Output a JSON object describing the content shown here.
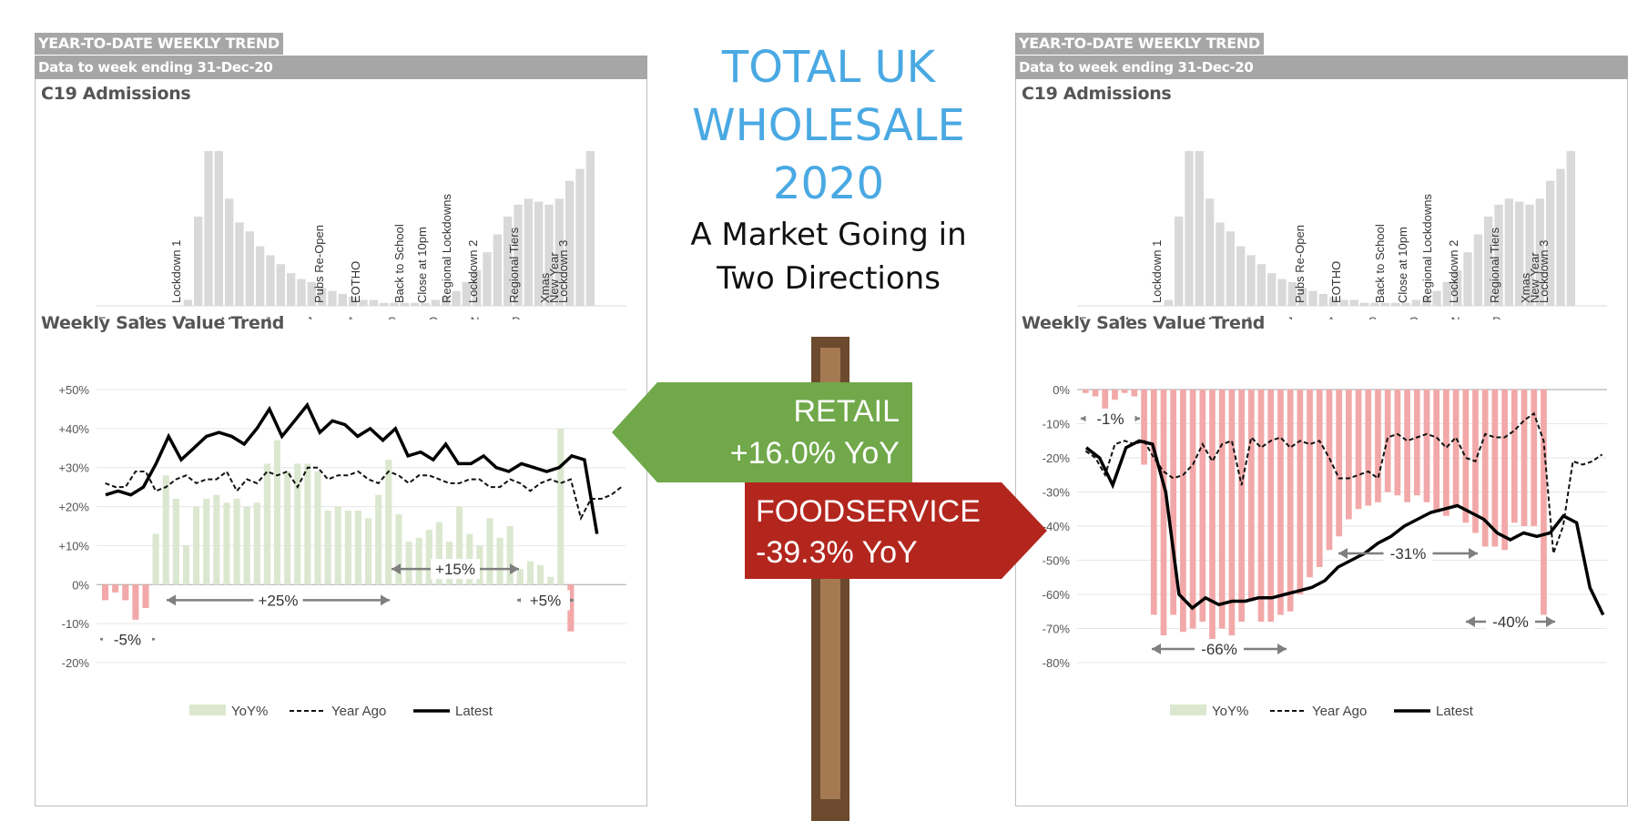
{
  "header": {
    "tab_label": "YEAR-TO-DATE WEEKLY TREND",
    "subtitle": "Data to week ending 31-Dec-20"
  },
  "center": {
    "title_lines": [
      "TOTAL UK",
      "WHOLESALE",
      "2020"
    ],
    "subtitle_lines": [
      "A Market Going in",
      "Two Directions"
    ]
  },
  "signs": {
    "retail": {
      "label": "RETAIL",
      "value": "+16.0% YoY",
      "color": "#70a84a"
    },
    "foodservice": {
      "label": "FOODSERVICE",
      "value": "-39.3% YoY",
      "color": "#b3261e"
    }
  },
  "colors": {
    "yoy_positive": "#dbe8cf",
    "yoy_negative": "#f2a8a8",
    "admissions": "#d9d9d9",
    "accent_blue": "#4aa9e3"
  },
  "shared": {
    "admissions_title": "C19 Admissions",
    "sales_title": "Weekly Sales Value Trend",
    "month_labels": [
      "F",
      "M",
      "A",
      "M",
      "J",
      "J",
      "A",
      "S",
      "O",
      "N",
      "D"
    ],
    "admissions": [
      0,
      0,
      0,
      0,
      0,
      0,
      0,
      0,
      2,
      30,
      52,
      52,
      36,
      28,
      25,
      20,
      17,
      14,
      11,
      9,
      8,
      6,
      5,
      4,
      3,
      2,
      2,
      1,
      1,
      1,
      1,
      1,
      2,
      3,
      5,
      8,
      12,
      18,
      24,
      30,
      34,
      36,
      35,
      34,
      36,
      42,
      46,
      52,
      0,
      0,
      0
    ],
    "events": [
      "Lockdown 1",
      "Pubs Re-Open",
      "EOTHO",
      "Back to School",
      "Close at 10pm",
      "Regional Lockdowns",
      "Lockdown 2",
      "Regional Tiers",
      "Xmas",
      "New Year",
      "Lockdown 3"
    ],
    "legend": [
      "YoY%",
      "Year Ago",
      "Latest"
    ]
  },
  "chart_data": [
    {
      "type": "line",
      "panel": "left",
      "title": "Weekly Sales Value Trend",
      "ylim": [
        -20,
        50
      ],
      "yticks": [
        "+50%",
        "+40%",
        "+30%",
        "+20%",
        "+10%",
        "0%",
        "-10%",
        "-20%"
      ],
      "series": [
        {
          "name": "YoY%",
          "kind": "bar",
          "values": [
            -4,
            -2,
            -4,
            -9,
            -6,
            13,
            28,
            22,
            10,
            20,
            22,
            23,
            21,
            22,
            20,
            21,
            31,
            37,
            29,
            31,
            31,
            29,
            19,
            20,
            19,
            19,
            17,
            23,
            32,
            18,
            11,
            12,
            14,
            16,
            11,
            20,
            13,
            10,
            17,
            12,
            15,
            4,
            6,
            5,
            2,
            40,
            -12
          ]
        },
        {
          "name": "Year Ago",
          "kind": "line",
          "values": [
            26,
            25,
            25,
            29,
            29,
            24,
            25,
            27,
            28,
            26,
            27,
            27,
            29,
            24,
            27,
            26,
            29,
            28,
            29,
            25,
            30,
            30,
            27,
            28,
            28,
            29,
            27,
            26,
            29,
            28,
            26,
            28,
            28,
            27,
            26,
            26,
            27,
            27,
            25,
            25,
            27,
            26,
            24,
            26,
            27,
            26,
            27,
            17,
            22,
            22,
            23,
            25
          ]
        },
        {
          "name": "Latest",
          "kind": "line",
          "values": [
            23,
            24,
            23,
            25,
            31,
            38,
            32,
            35,
            38,
            39,
            38,
            36,
            40,
            45,
            38,
            42,
            46,
            39,
            42,
            41,
            38,
            40,
            37,
            40,
            33,
            34,
            32,
            36,
            31,
            31,
            33,
            30,
            29,
            31,
            30,
            29,
            30,
            33,
            32,
            13
          ]
        }
      ],
      "annotations": [
        "-5%",
        "+25%",
        "+15%",
        "+5%"
      ]
    },
    {
      "type": "line",
      "panel": "right",
      "title": "Weekly Sales Value Trend",
      "ylim": [
        -80,
        0
      ],
      "yticks": [
        "0%",
        "-10%",
        "-20%",
        "-30%",
        "-40%",
        "-50%",
        "-60%",
        "-70%",
        "-80%"
      ],
      "series": [
        {
          "name": "YoY%",
          "kind": "bar",
          "values": [
            -1,
            -2,
            -6,
            -3,
            -1,
            -2,
            -22,
            -66,
            -72,
            -66,
            -71,
            -70,
            -68,
            -74,
            -70,
            -72,
            -68,
            -62,
            -68,
            -68,
            -66,
            -65,
            -60,
            -55,
            -52,
            -47,
            -43,
            -38,
            -35,
            -34,
            -33,
            -30,
            -31,
            -33,
            -31,
            -33,
            -36,
            -37,
            -34,
            -39,
            -42,
            -46,
            -46,
            -47,
            -39,
            -40,
            -40,
            -66
          ]
        },
        {
          "name": "Year Ago",
          "kind": "line",
          "values": [
            -18,
            -20,
            -25,
            -16,
            -15,
            -16,
            -15,
            -20,
            -24,
            -26,
            -25,
            -22,
            -16,
            -21,
            -16,
            -15,
            -28,
            -14,
            -17,
            -15,
            -14,
            -17,
            -15,
            -16,
            -15,
            -20,
            -26,
            -26,
            -25,
            -24,
            -26,
            -14,
            -13,
            -15,
            -14,
            -13,
            -14,
            -17,
            -14,
            -20,
            -21,
            -13,
            -14,
            -14,
            -12,
            -9,
            -7,
            -15,
            -48,
            -40,
            -21,
            -22,
            -21,
            -19
          ]
        },
        {
          "name": "Latest",
          "kind": "line",
          "values": [
            -17,
            -20,
            -28,
            -17,
            -15,
            -16,
            -30,
            -60,
            -64,
            -61,
            -63,
            -62,
            -62,
            -61,
            -61,
            -60,
            -59,
            -58,
            -56,
            -52,
            -50,
            -48,
            -45,
            -43,
            -40,
            -38,
            -36,
            -35,
            -34,
            -36,
            -38,
            -42,
            -44,
            -42,
            -43,
            -42,
            -37,
            -39,
            -58,
            -66
          ]
        }
      ],
      "annotations": [
        "-1%",
        "-66%",
        "-31%",
        "-40%"
      ]
    }
  ]
}
